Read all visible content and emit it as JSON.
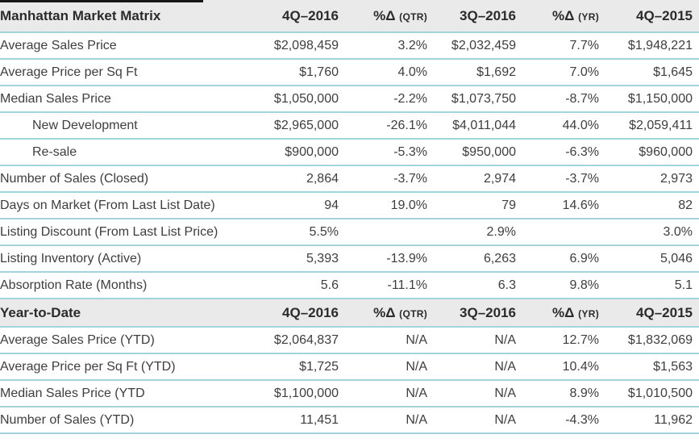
{
  "colors": {
    "divider_teal": "#a2d4dc",
    "header_band_gray": "#eaeaea",
    "body_text": "#3e3e3e",
    "header_text": "#2b2b2b",
    "top_rule_black": "#161616"
  },
  "chart_data": {
    "type": "table",
    "title": "Manhattan Market Matrix",
    "layout": {
      "column_alignment": [
        "left",
        "right",
        "right",
        "right",
        "right",
        "right"
      ],
      "section_header_background": "gray-band",
      "row_dividers": "teal"
    },
    "sections": [
      {
        "header": {
          "title": "Manhattan Market Matrix",
          "cols": [
            {
              "main": "4Q–2016",
              "paren": ""
            },
            {
              "main": "%Δ",
              "paren": "(QTR)"
            },
            {
              "main": "3Q–2016",
              "paren": ""
            },
            {
              "main": "%Δ",
              "paren": "(YR)"
            },
            {
              "main": "4Q–2015",
              "paren": ""
            }
          ]
        },
        "rows": [
          {
            "label": "Average Sales Price",
            "indent": false,
            "values": [
              "$2,098,459",
              "3.2%",
              "$2,032,459",
              "7.7%",
              "$1,948,221"
            ]
          },
          {
            "label": "Average Price per Sq Ft",
            "indent": false,
            "values": [
              "$1,760",
              "4.0%",
              "$1,692",
              "7.0%",
              "$1,645"
            ]
          },
          {
            "label": "Median Sales Price",
            "indent": false,
            "values": [
              "$1,050,000",
              "-2.2%",
              "$1,073,750",
              "-8.7%",
              "$1,150,000"
            ]
          },
          {
            "label": "New Development",
            "indent": true,
            "values": [
              "$2,965,000",
              "-26.1%",
              "$4,011,044",
              "44.0%",
              "$2,059,411"
            ]
          },
          {
            "label": "Re-sale",
            "indent": true,
            "values": [
              "$900,000",
              "-5.3%",
              "$950,000",
              "-6.3%",
              "$960,000"
            ]
          },
          {
            "label": "Number of Sales (Closed)",
            "indent": false,
            "values": [
              "2,864",
              "-3.7%",
              "2,974",
              "-3.7%",
              "2,973"
            ]
          },
          {
            "label": "Days on Market (From Last List Date)",
            "indent": false,
            "values": [
              "94",
              "19.0%",
              "79",
              "14.6%",
              "82"
            ]
          },
          {
            "label": "Listing Discount (From Last List Price)",
            "indent": false,
            "values": [
              "5.5%",
              "",
              "2.9%",
              "",
              "3.0%"
            ]
          },
          {
            "label": "Listing Inventory (Active)",
            "indent": false,
            "values": [
              "5,393",
              "-13.9%",
              "6,263",
              "6.9%",
              "5,046"
            ]
          },
          {
            "label": "Absorption Rate (Months)",
            "indent": false,
            "values": [
              "5.6",
              "-11.1%",
              "6.3",
              "9.8%",
              "5.1"
            ]
          }
        ]
      },
      {
        "header": {
          "title": "Year-to-Date",
          "cols": [
            {
              "main": "4Q–2016",
              "paren": ""
            },
            {
              "main": "%Δ",
              "paren": "(QTR)"
            },
            {
              "main": "3Q–2016",
              "paren": ""
            },
            {
              "main": "%Δ",
              "paren": "(YR)"
            },
            {
              "main": "4Q–2015",
              "paren": ""
            }
          ]
        },
        "rows": [
          {
            "label": "Average Sales Price (YTD)",
            "indent": false,
            "values": [
              "$2,064,837",
              "N/A",
              "N/A",
              "12.7%",
              "$1,832,069"
            ]
          },
          {
            "label": "Average Price per Sq Ft (YTD)",
            "indent": false,
            "values": [
              "$1,725",
              "N/A",
              "N/A",
              "10.4%",
              "$1,563"
            ]
          },
          {
            "label": "Median Sales Price (YTD",
            "indent": false,
            "values": [
              "$1,100,000",
              "N/A",
              "N/A",
              "8.9%",
              "$1,010,500"
            ]
          },
          {
            "label": "Number of Sales (YTD)",
            "indent": false,
            "values": [
              "11,451",
              "N/A",
              "N/A",
              "-4.3%",
              "11,962"
            ]
          }
        ]
      }
    ]
  }
}
